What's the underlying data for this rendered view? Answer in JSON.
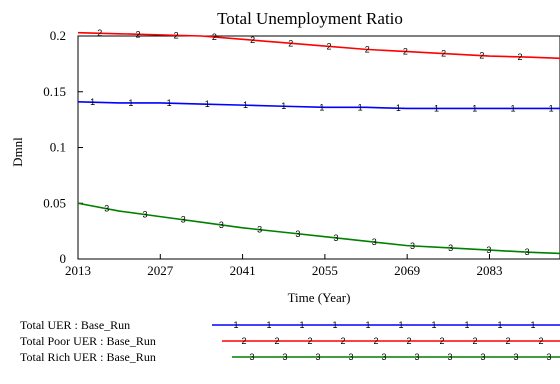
{
  "colors": {
    "series": [
      "#0000ff",
      "#ff0000",
      "#008000"
    ],
    "axis": "#000000",
    "background": "#ffffff"
  },
  "chart_data": {
    "type": "line",
    "title": "Total Unemployment Ratio",
    "xlabel": "Time (Year)",
    "ylabel": "Dmnl",
    "xlim": [
      2013,
      2095
    ],
    "ylim": [
      0,
      0.2
    ],
    "xticks": [
      "2013",
      "2027",
      "2041",
      "2055",
      "2069",
      "2083"
    ],
    "yticks": [
      "0",
      "0.05",
      "0.1",
      "0.15",
      "0.2"
    ],
    "grid": false,
    "legend_position": "bottom",
    "series": [
      {
        "name": "Total UER : Base_Run",
        "marker": "1",
        "x": [
          2013,
          2020,
          2027,
          2034,
          2041,
          2048,
          2055,
          2062,
          2069,
          2076,
          2083,
          2090,
          2095
        ],
        "y": [
          0.141,
          0.14,
          0.14,
          0.139,
          0.138,
          0.137,
          0.136,
          0.136,
          0.135,
          0.135,
          0.135,
          0.135,
          0.135
        ]
      },
      {
        "name": "Total Poor UER : Base_Run",
        "marker": "2",
        "x": [
          2013,
          2020,
          2027,
          2034,
          2041,
          2048,
          2055,
          2062,
          2069,
          2076,
          2083,
          2090,
          2095
        ],
        "y": [
          0.203,
          0.202,
          0.201,
          0.2,
          0.197,
          0.194,
          0.191,
          0.188,
          0.186,
          0.184,
          0.182,
          0.181,
          0.18
        ]
      },
      {
        "name": "Total Rich UER : Base_Run",
        "marker": "3",
        "x": [
          2013,
          2020,
          2027,
          2034,
          2041,
          2048,
          2055,
          2062,
          2069,
          2076,
          2083,
          2090,
          2095
        ],
        "y": [
          0.05,
          0.043,
          0.038,
          0.033,
          0.028,
          0.024,
          0.02,
          0.016,
          0.012,
          0.01,
          0.008,
          0.006,
          0.005
        ]
      }
    ]
  }
}
